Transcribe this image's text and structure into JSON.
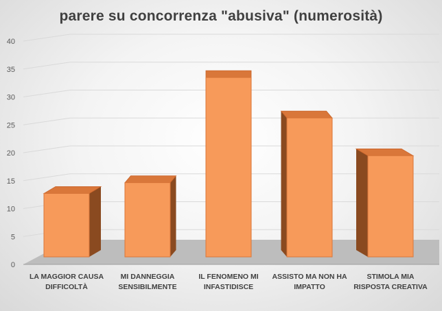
{
  "chart_data": {
    "type": "bar",
    "title": "parere su concorrenza \"abusiva\" (numerosità)",
    "categories": [
      [
        "LA MAGGIOR CAUSA",
        "DIFFICOLTÀ"
      ],
      [
        "MI DANNEGGIA",
        "SENSIBILMENTE"
      ],
      [
        "IL FENOMENO MI",
        "INFASTIDISCE"
      ],
      [
        "ASSISTO MA NON HA",
        "IMPATTO"
      ],
      [
        "STIMOLA MIA",
        "RISPOSTA CREATIVA"
      ]
    ],
    "values": [
      11.5,
      13.5,
      33,
      25.5,
      18.5
    ],
    "ylim": [
      0,
      40
    ],
    "yticks": [
      0,
      5,
      10,
      15,
      20,
      25,
      30,
      35,
      40
    ],
    "xlabel": "",
    "ylabel": "",
    "grid": true,
    "colors": {
      "bar_front": "#f79a5a",
      "bar_side": "#8a4a20",
      "bar_top": "#d9773a",
      "floor": "#bdbdbd",
      "grid": "#d9d9d9"
    }
  }
}
